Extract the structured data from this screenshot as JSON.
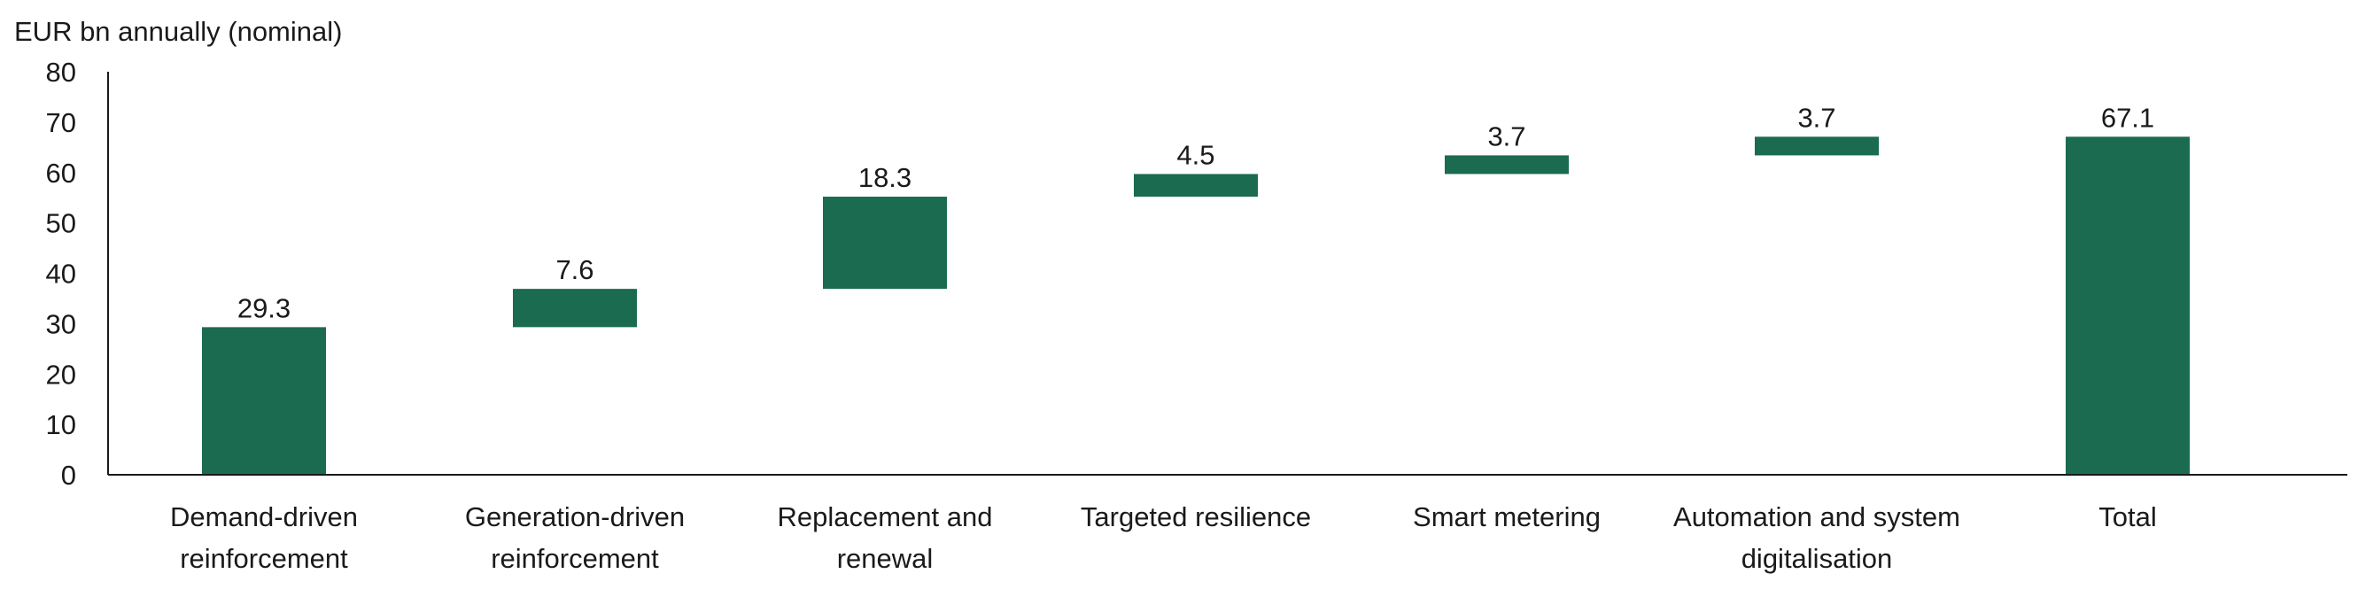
{
  "chart_data": {
    "type": "bar",
    "subtype": "waterfall",
    "ylabel": "EUR bn annually (nominal)",
    "xlabel": "",
    "ylim": [
      0,
      80
    ],
    "yticks": [
      0,
      10,
      20,
      30,
      40,
      50,
      60,
      70,
      80
    ],
    "grid": false,
    "legend": "none",
    "bar_color": "#1a6b50",
    "categories": [
      [
        "Demand-driven",
        "reinforcement"
      ],
      [
        "Generation-driven",
        "reinforcement"
      ],
      [
        "Replacement and",
        "renewal"
      ],
      [
        "Targeted resilience"
      ],
      [
        "Smart metering"
      ],
      [
        "Automation and system",
        "digitalisation"
      ],
      [
        "Total"
      ]
    ],
    "values": [
      29.3,
      7.6,
      18.3,
      4.5,
      3.7,
      3.7,
      67.1
    ],
    "data_labels": [
      "29.3",
      "7.6",
      "18.3",
      "4.5",
      "3.7",
      "3.7",
      "67.1"
    ],
    "is_total": [
      false,
      false,
      false,
      false,
      false,
      false,
      true
    ]
  }
}
